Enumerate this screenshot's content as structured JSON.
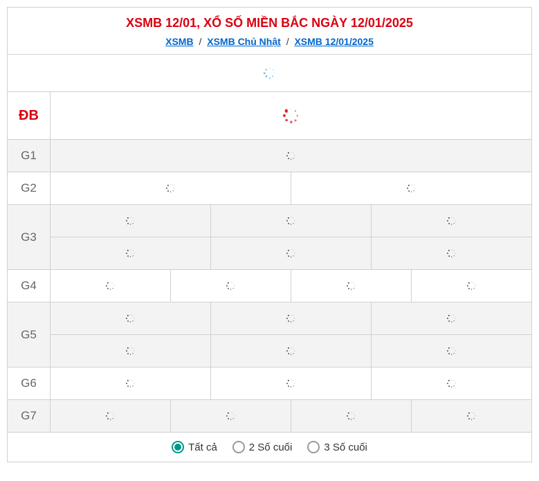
{
  "title": "XSMB 12/01, XỔ SỐ MIỀN BẮC NGÀY 12/01/2025",
  "breadcrumb": {
    "items": [
      {
        "label": "XSMB"
      },
      {
        "label": "XSMB Chủ Nhật"
      },
      {
        "label": "XSMB 12/01/2025"
      }
    ],
    "separator": "/"
  },
  "top_spinner": {
    "color": "#2aa3d9",
    "size": 18,
    "dots": 8,
    "dot_size": 2.2
  },
  "rows": [
    {
      "label": "ĐB",
      "special": true,
      "zebra": "even",
      "big": true,
      "lines": [
        {
          "cells": 1
        }
      ],
      "spinner": {
        "color": "#e30613",
        "size": 24,
        "dots": 8,
        "dot_size": 3.5
      }
    },
    {
      "label": "G1",
      "special": false,
      "zebra": "odd",
      "big": false,
      "lines": [
        {
          "cells": 1
        }
      ],
      "spinner": {
        "color": "#333333",
        "size": 14,
        "dots": 8,
        "dot_size": 1.8
      }
    },
    {
      "label": "G2",
      "special": false,
      "zebra": "even",
      "big": false,
      "lines": [
        {
          "cells": 2
        }
      ],
      "spinner": {
        "color": "#333333",
        "size": 14,
        "dots": 8,
        "dot_size": 1.8
      }
    },
    {
      "label": "G3",
      "special": false,
      "zebra": "odd",
      "big": false,
      "lines": [
        {
          "cells": 3
        },
        {
          "cells": 3
        }
      ],
      "spinner": {
        "color": "#333333",
        "size": 14,
        "dots": 8,
        "dot_size": 1.8
      }
    },
    {
      "label": "G4",
      "special": false,
      "zebra": "even",
      "big": false,
      "lines": [
        {
          "cells": 4
        }
      ],
      "spinner": {
        "color": "#333333",
        "size": 14,
        "dots": 8,
        "dot_size": 1.8
      }
    },
    {
      "label": "G5",
      "special": false,
      "zebra": "odd",
      "big": false,
      "lines": [
        {
          "cells": 3
        },
        {
          "cells": 3
        }
      ],
      "spinner": {
        "color": "#333333",
        "size": 14,
        "dots": 8,
        "dot_size": 1.8
      }
    },
    {
      "label": "G6",
      "special": false,
      "zebra": "even",
      "big": false,
      "lines": [
        {
          "cells": 3
        }
      ],
      "spinner": {
        "color": "#333333",
        "size": 14,
        "dots": 8,
        "dot_size": 1.8
      }
    },
    {
      "label": "G7",
      "special": false,
      "zebra": "odd",
      "big": false,
      "lines": [
        {
          "cells": 4
        }
      ],
      "spinner": {
        "color": "#333333",
        "size": 14,
        "dots": 8,
        "dot_size": 1.8
      }
    }
  ],
  "filters": {
    "options": [
      {
        "label": "Tất cả",
        "selected": true
      },
      {
        "label": "2 Số cuối",
        "selected": false
      },
      {
        "label": "3 Số cuối",
        "selected": false
      }
    ]
  },
  "colors": {
    "brand_red": "#d9000f",
    "link_blue": "#0066cc",
    "accent_teal": "#009688",
    "border": "#d0d0d0",
    "zebra_odd": "#f3f3f3",
    "zebra_even": "#ffffff",
    "text_muted": "#666666"
  }
}
